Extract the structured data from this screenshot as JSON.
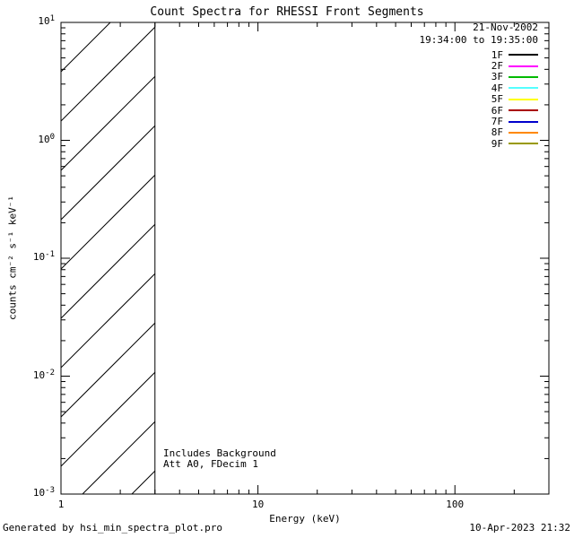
{
  "title": "Count Spectra for RHESSI Front Segments",
  "footer": {
    "generated_by": "Generated by hsi_min_spectra_plot.pro",
    "timestamp": "10-Apr-2023 21:32"
  },
  "chart_data": {
    "type": "line",
    "title": "Count Spectra for RHESSI Front Segments",
    "xlabel": "Energy (keV)",
    "ylabel": "counts cm⁻² s⁻¹ keV⁻¹",
    "x_scale": "log",
    "y_scale": "log",
    "xlim": [
      1,
      300
    ],
    "ylim": [
      0.001,
      10
    ],
    "x_tick_values": [
      1,
      10,
      100
    ],
    "x_tick_labels": [
      "1",
      "10",
      "100"
    ],
    "y_tick_values": [
      10,
      1,
      0.1,
      0.01,
      0.001
    ],
    "y_tick_labels": [
      "10^1",
      "10^0",
      "10^-1",
      "10^-2",
      "10^-3"
    ],
    "grid": false,
    "annotations": [
      "Includes Background",
      "Att A0, FDecim 1"
    ],
    "hatched_region": {
      "x_range": [
        1,
        3
      ],
      "style": "diagonal-hatch"
    },
    "legend": {
      "position": "top-right",
      "date": "21-Nov-2002",
      "time_range": "19:34:00 to 19:35:00",
      "entries": [
        {
          "label": "1F",
          "color": "#000000"
        },
        {
          "label": "2F",
          "color": "#ff00ff"
        },
        {
          "label": "3F",
          "color": "#00bb00"
        },
        {
          "label": "4F",
          "color": "#55ffff"
        },
        {
          "label": "5F",
          "color": "#ffff00"
        },
        {
          "label": "6F",
          "color": "#aa0000"
        },
        {
          "label": "7F",
          "color": "#0000cc"
        },
        {
          "label": "8F",
          "color": "#ff8800"
        },
        {
          "label": "9F",
          "color": "#999900"
        }
      ]
    },
    "series": []
  }
}
